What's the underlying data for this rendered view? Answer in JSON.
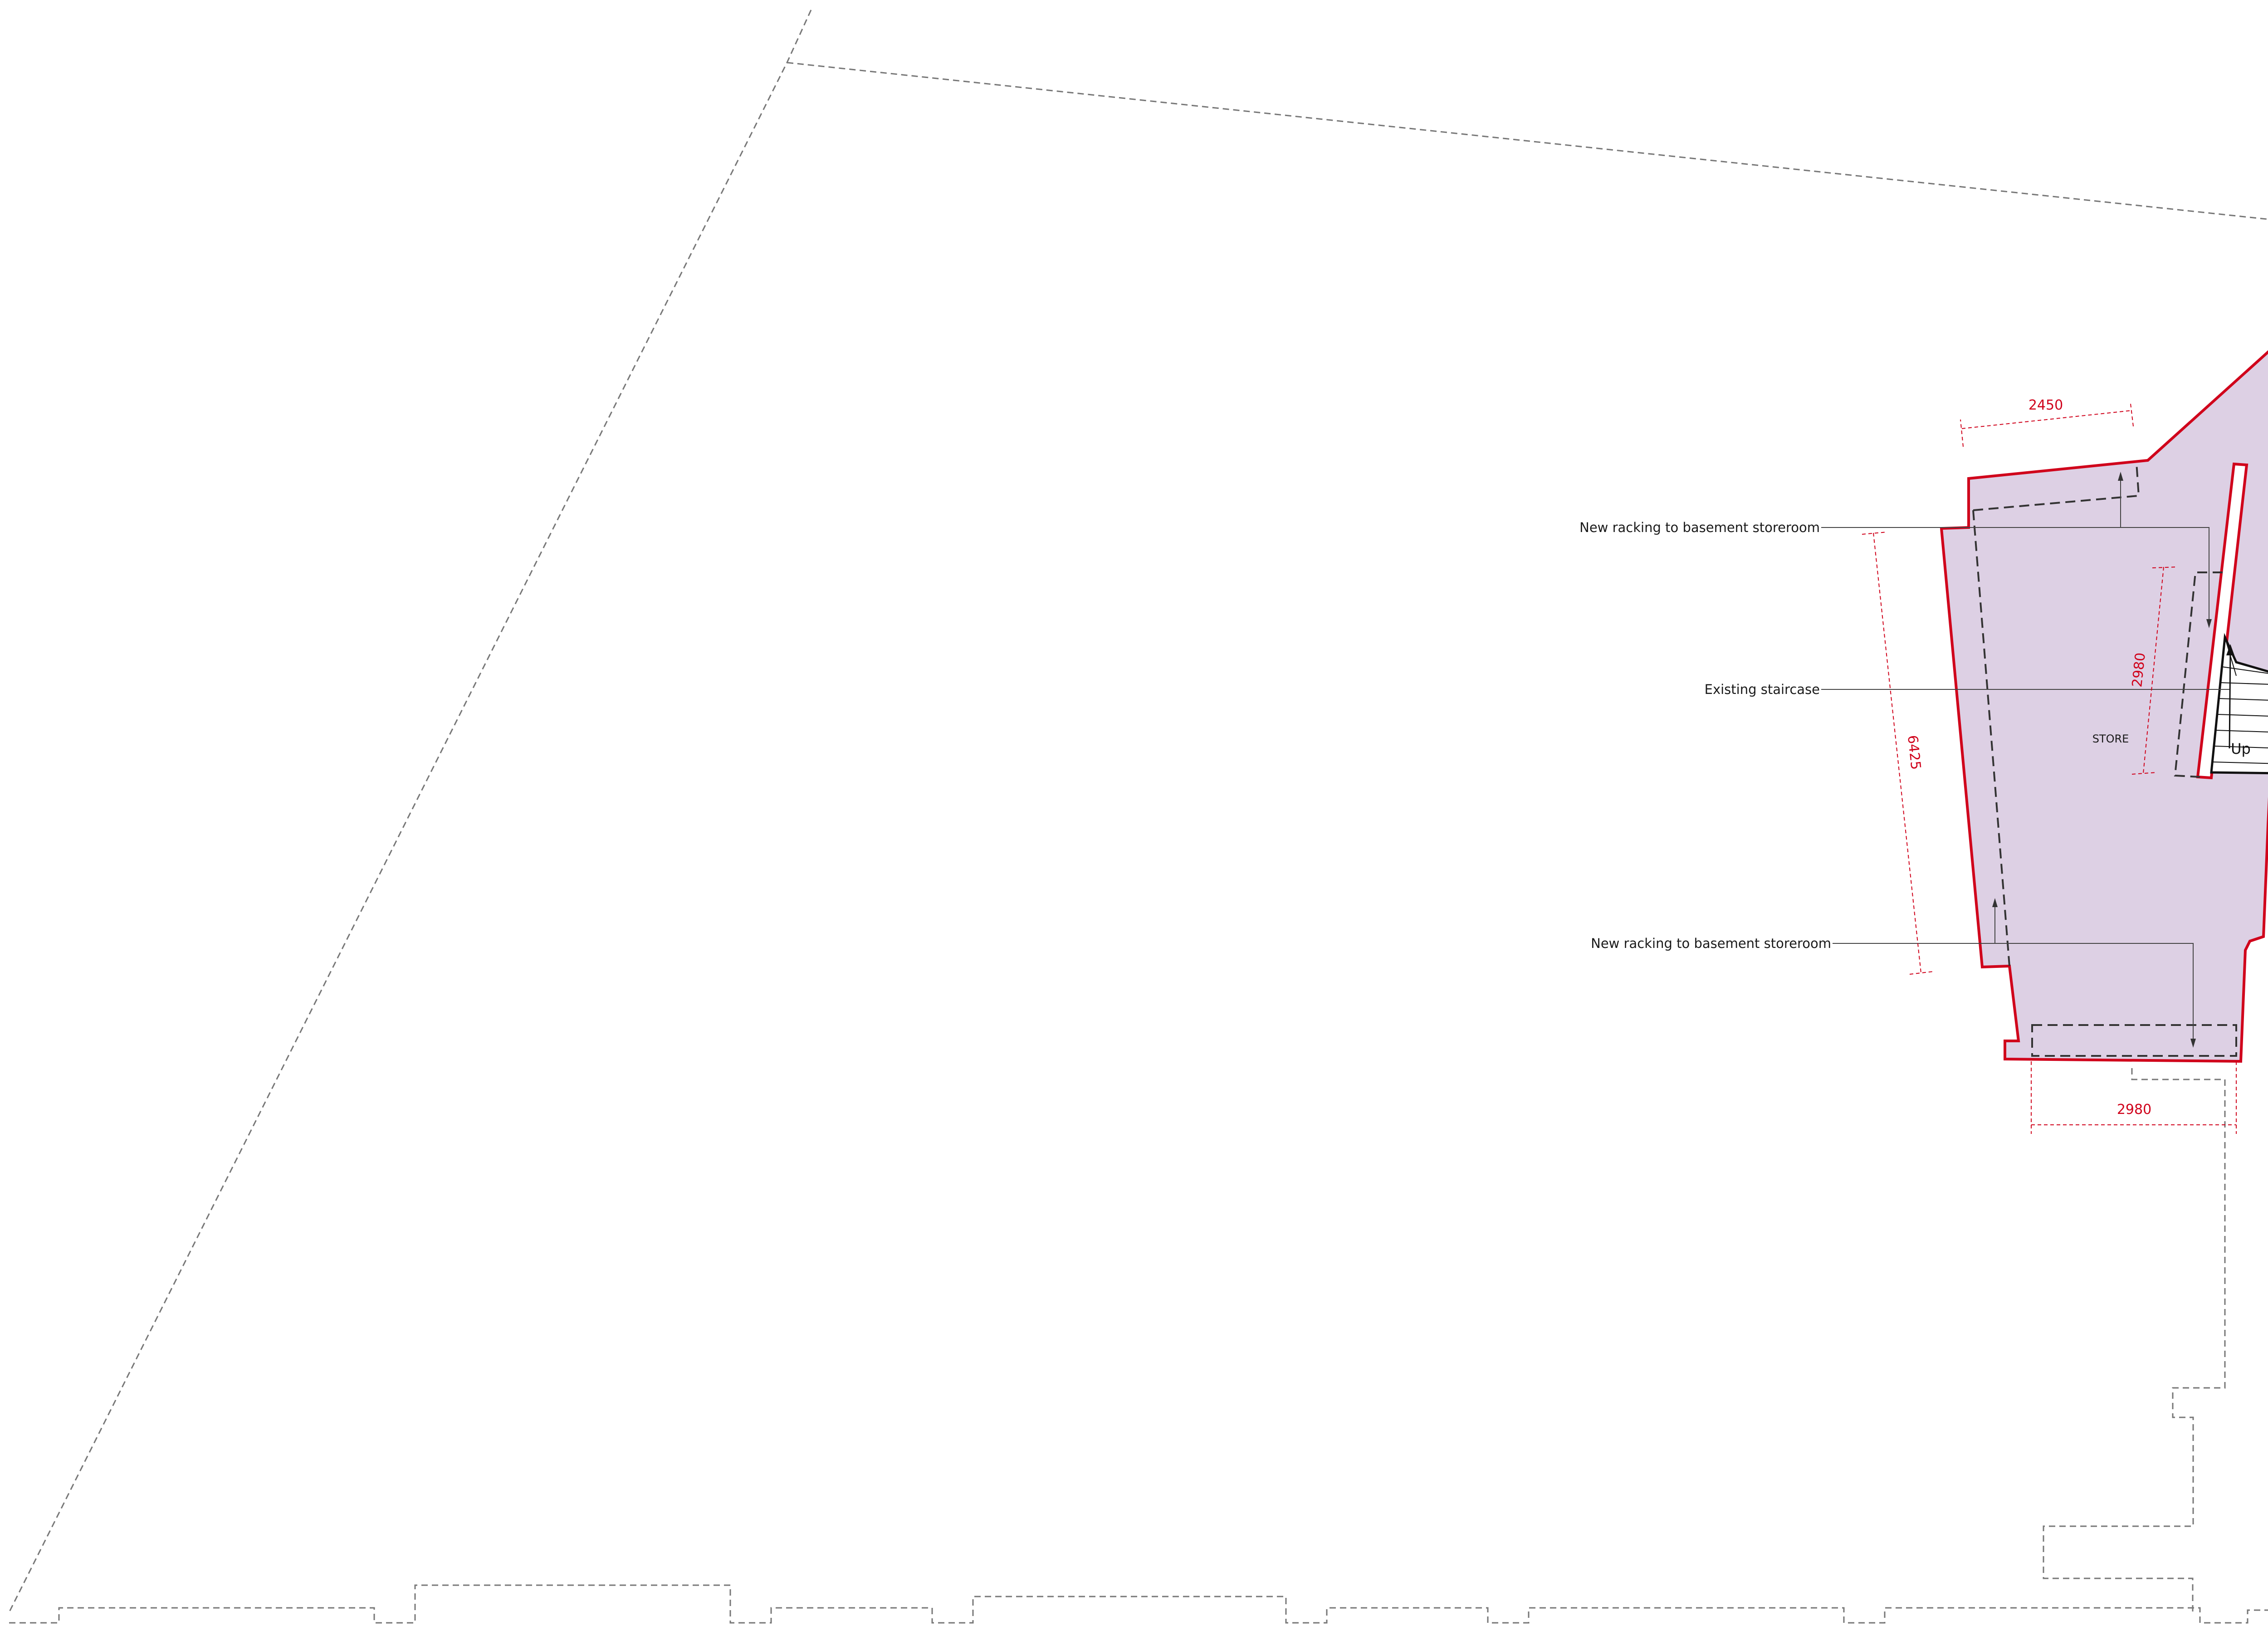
{
  "colors": {
    "accent_red": "#d0021b",
    "room_fill": "#ddd0e4",
    "line_dark": "#333333",
    "site_dash": "#777777"
  },
  "labels": {
    "racking_upper": "New racking to basement storeroom",
    "staircase": "Existing staircase",
    "racking_lower": "New racking to basement storeroom",
    "room_name": "STORE",
    "stair_up": "Up"
  },
  "dimensions": {
    "top_width": "2450",
    "left_length": "6425",
    "stair_length": "2980",
    "bottom_width": "2980"
  }
}
